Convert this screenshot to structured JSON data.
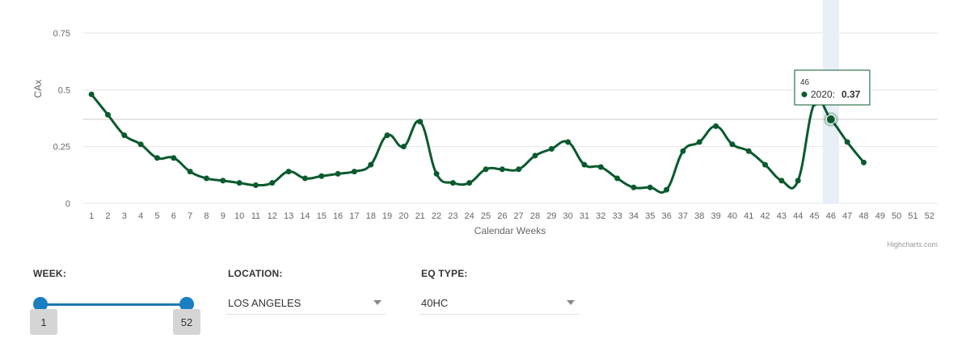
{
  "chart_data": {
    "type": "line",
    "xlabel": "Calendar Weeks",
    "ylabel": "CAx",
    "ylim": [
      0,
      0.75
    ],
    "yticks": [
      0,
      0.25,
      0.5,
      0.75
    ],
    "ytick_labels": [
      "0",
      "0.25",
      "0.5",
      "0.75"
    ],
    "categories": [
      "1",
      "2",
      "3",
      "4",
      "5",
      "6",
      "7",
      "8",
      "9",
      "10",
      "11",
      "12",
      "13",
      "14",
      "15",
      "16",
      "17",
      "18",
      "19",
      "20",
      "21",
      "22",
      "23",
      "24",
      "25",
      "26",
      "27",
      "28",
      "29",
      "30",
      "31",
      "32",
      "33",
      "34",
      "35",
      "36",
      "37",
      "38",
      "39",
      "40",
      "41",
      "42",
      "43",
      "44",
      "45",
      "46",
      "47",
      "48",
      "49",
      "50",
      "51",
      "52"
    ],
    "series": [
      {
        "name": "2020",
        "color": "#0b5a2e",
        "values": [
          0.48,
          0.39,
          0.3,
          0.26,
          0.2,
          0.2,
          0.14,
          0.11,
          0.1,
          0.09,
          0.08,
          0.09,
          0.14,
          0.11,
          0.12,
          0.13,
          0.14,
          0.17,
          0.3,
          0.25,
          0.36,
          0.13,
          0.09,
          0.09,
          0.15,
          0.15,
          0.15,
          0.21,
          0.24,
          0.27,
          0.17,
          0.16,
          0.11,
          0.07,
          0.07,
          0.06,
          0.23,
          0.27,
          0.34,
          0.26,
          0.23,
          0.17,
          0.1,
          0.1,
          0.44,
          0.37,
          0.27,
          0.18,
          null,
          null,
          null,
          null
        ]
      }
    ],
    "grid": true,
    "legend": "none",
    "tooltip": {
      "header": "46",
      "series_name": "2020",
      "value": "0.37"
    },
    "credits": "Highcharts.com"
  },
  "controls": {
    "week_label": "WEEK:",
    "week_min": "1",
    "week_max": "52",
    "location_label": "LOCATION:",
    "location_value": "LOS ANGELES",
    "eq_type_label": "EQ TYPE:",
    "eq_type_value": "40HC"
  }
}
